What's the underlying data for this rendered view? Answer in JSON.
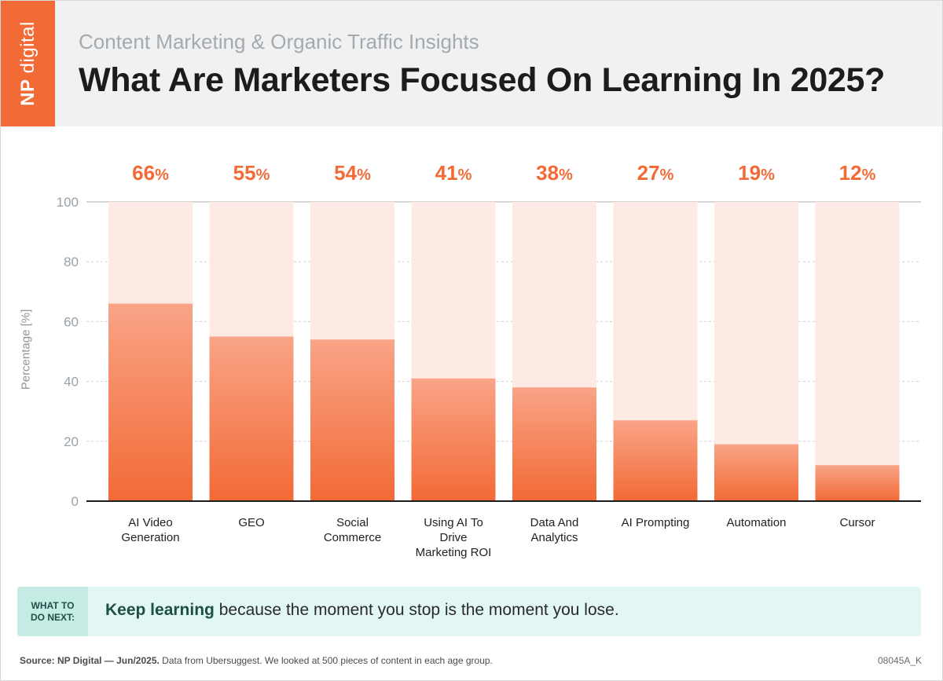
{
  "brand": {
    "logo_np": "NP",
    "logo_rest": "digital",
    "accent": "#f26a36"
  },
  "header": {
    "subtitle": "Content Marketing & Organic Traffic Insights",
    "title": "What Are Marketers Focused On Learning In 2025?"
  },
  "chart_data": {
    "type": "bar",
    "title": "What Are Marketers Focused On Learning In 2025?",
    "xlabel": "",
    "ylabel": "Percentage [%]",
    "ylim": [
      0,
      100
    ],
    "yticks": [
      0,
      20,
      40,
      60,
      80,
      100
    ],
    "grid": true,
    "categories": [
      "AI Video Generation",
      "GEO",
      "Social Commerce",
      "Using AI To Drive Marketing ROI",
      "Data And Analytics",
      "AI Prompting",
      "Automation",
      "Cursor"
    ],
    "category_lines": [
      [
        "AI Video",
        "Generation"
      ],
      [
        "GEO"
      ],
      [
        "Social",
        "Commerce"
      ],
      [
        "Using AI To",
        "Drive",
        "Marketing ROI"
      ],
      [
        "Data And",
        "Analytics"
      ],
      [
        "AI Prompting"
      ],
      [
        "Automation"
      ],
      [
        "Cursor"
      ]
    ],
    "values": [
      66,
      55,
      54,
      41,
      38,
      27,
      19,
      12
    ],
    "value_suffix": "%",
    "colors": {
      "bar": "#f26a36",
      "bar_light": "#f9a487",
      "track": "#fdeae4",
      "value_label": "#f26a36"
    }
  },
  "callout": {
    "tag_line1": "WHAT TO",
    "tag_line2": "DO NEXT:",
    "bold": "Keep learning",
    "text": " because the moment you stop is the moment you lose."
  },
  "footer": {
    "source_bold": "Source: NP Digital — Jun/2025.",
    "source_text": " Data from Ubersuggest. We looked at 500 pieces of content in each age group.",
    "code": "08045A_K"
  }
}
